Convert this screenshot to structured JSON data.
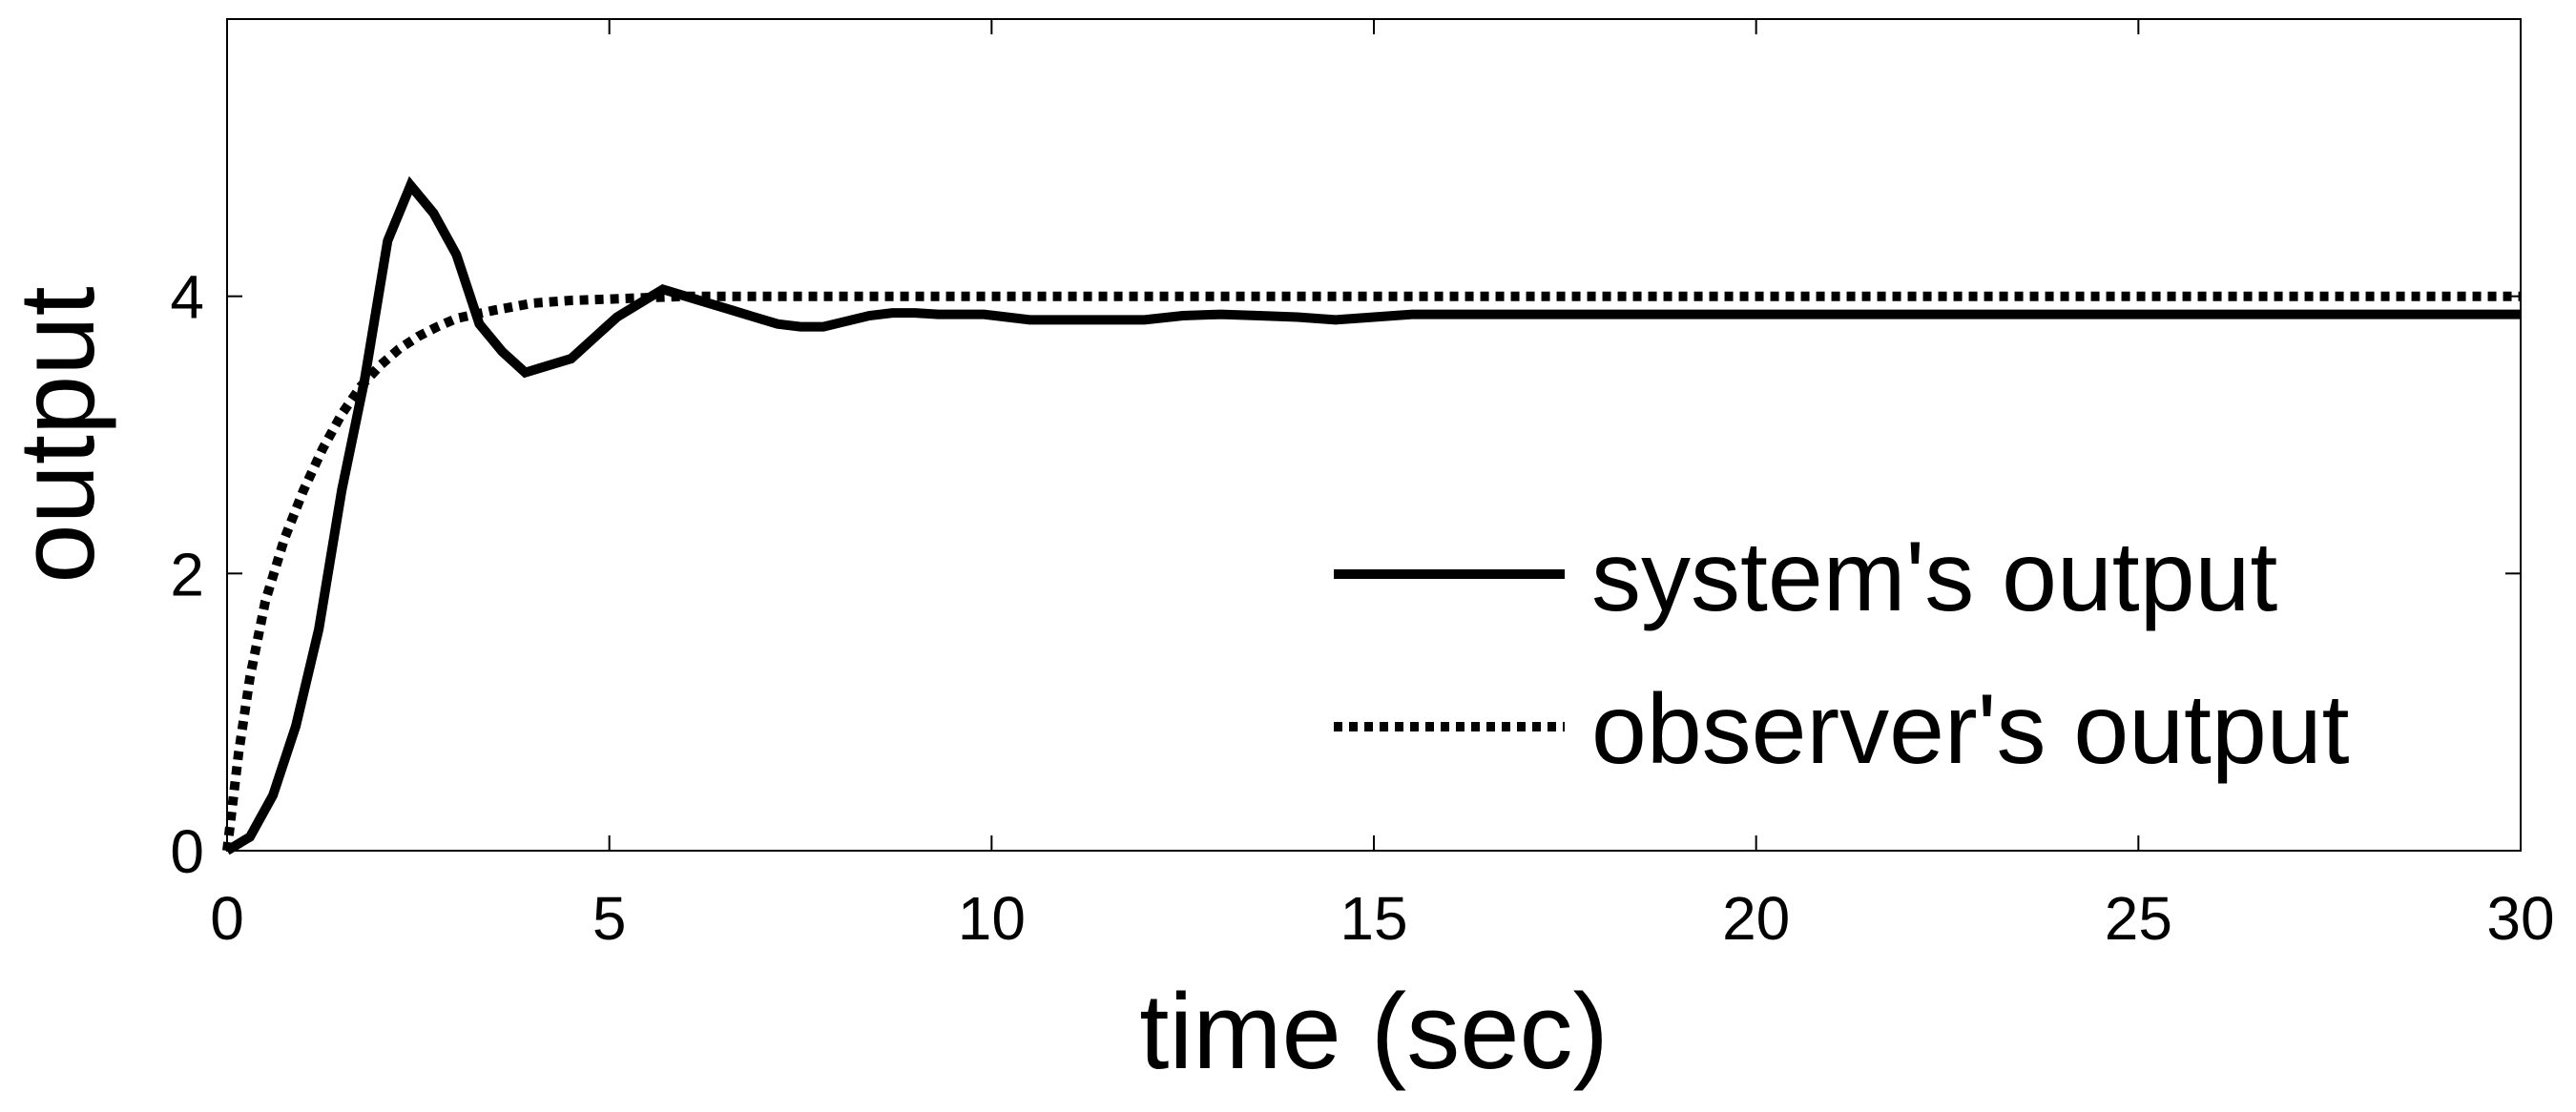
{
  "chart_data": {
    "type": "line",
    "title": "",
    "xlabel": "time (sec)",
    "ylabel": "output",
    "xlim": [
      0,
      30
    ],
    "ylim": [
      0,
      6
    ],
    "xticks": [
      0,
      5,
      10,
      15,
      20,
      25,
      30
    ],
    "xtick_labels": [
      "0",
      "5",
      "10",
      "15",
      "20",
      "25",
      "30"
    ],
    "yticks": [
      0,
      2,
      4
    ],
    "ytick_labels": [
      "0",
      "2",
      "4"
    ],
    "grid": false,
    "legend_position": "bottom-right",
    "series": [
      {
        "name": "system's output",
        "style": "solid",
        "color": "#000000",
        "x": [
          0,
          0.3,
          0.6,
          0.9,
          1.2,
          1.5,
          1.8,
          2.1,
          2.4,
          2.7,
          3.0,
          3.3,
          3.6,
          3.9,
          4.2,
          4.5,
          4.8,
          5.1,
          5.4,
          5.7,
          6.0,
          6.3,
          6.6,
          6.9,
          7.2,
          7.5,
          7.8,
          8.1,
          8.4,
          8.7,
          9.0,
          9.3,
          9.6,
          9.9,
          10.5,
          11.0,
          11.5,
          12.0,
          12.5,
          13.0,
          13.5,
          14.0,
          14.5,
          15.0,
          15.5,
          16.0,
          17.0,
          18.0,
          20.0,
          22.0,
          25.0,
          28.0,
          30.0
        ],
        "y": [
          0,
          0.1,
          0.4,
          0.9,
          1.6,
          2.6,
          3.4,
          4.4,
          4.8,
          4.6,
          4.3,
          3.8,
          3.6,
          3.45,
          3.5,
          3.55,
          3.7,
          3.85,
          3.95,
          4.05,
          4.0,
          3.95,
          3.9,
          3.85,
          3.8,
          3.78,
          3.78,
          3.82,
          3.86,
          3.88,
          3.88,
          3.87,
          3.87,
          3.87,
          3.83,
          3.83,
          3.83,
          3.83,
          3.86,
          3.87,
          3.86,
          3.85,
          3.83,
          3.85,
          3.87,
          3.87,
          3.87,
          3.87,
          3.87,
          3.87,
          3.87,
          3.87,
          3.87
        ]
      },
      {
        "name": "observer's output",
        "style": "dotted",
        "color": "#000000",
        "x": [
          0,
          0.15,
          0.3,
          0.5,
          0.75,
          1.0,
          1.25,
          1.5,
          1.75,
          2.0,
          2.25,
          2.5,
          2.75,
          3.0,
          3.5,
          4.0,
          4.5,
          5.0,
          5.5,
          6.0,
          7.0,
          8.0,
          10.0,
          15.0,
          20.0,
          25.0,
          30.0
        ],
        "y": [
          0,
          0.7,
          1.25,
          1.8,
          2.25,
          2.6,
          2.9,
          3.15,
          3.35,
          3.5,
          3.62,
          3.71,
          3.78,
          3.84,
          3.9,
          3.95,
          3.97,
          3.98,
          3.99,
          4.0,
          4.0,
          4.0,
          4.0,
          4.0,
          4.0,
          4.0,
          4.0
        ]
      }
    ]
  }
}
